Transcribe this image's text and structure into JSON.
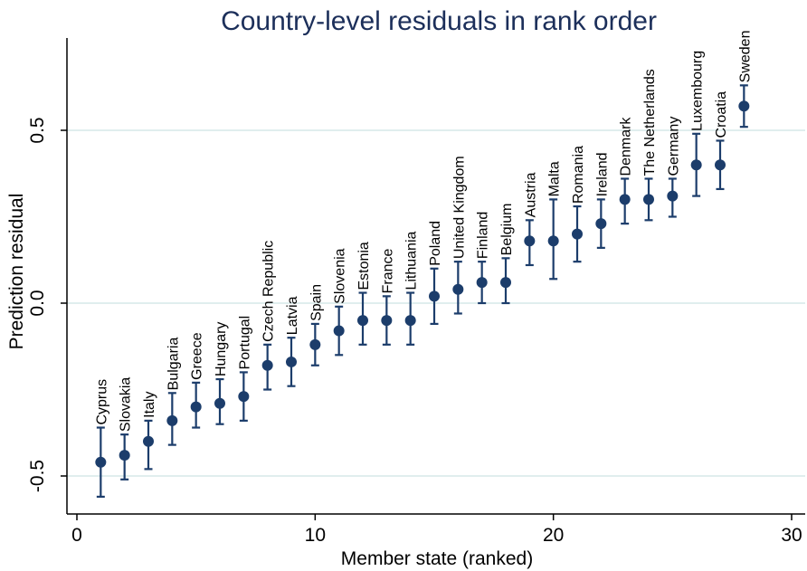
{
  "chart_data": {
    "type": "scatter",
    "title": "Country-level residuals in rank order",
    "xlabel": "Member state (ranked)",
    "ylabel": "Prediction residual",
    "xlim": [
      0,
      30
    ],
    "ylim": [
      -0.6,
      0.77
    ],
    "x_ticks": [
      0,
      10,
      20,
      30
    ],
    "x_tick_labels": [
      "0",
      "10",
      "20",
      "30"
    ],
    "y_ticks": [
      -0.5,
      0.0,
      0.5
    ],
    "y_tick_labels": [
      "-0.5",
      "0.0",
      "0.5"
    ],
    "grid": "horizontal",
    "legend": "none",
    "colors": {
      "marker": "#1c3d6b",
      "title": "#1c2f5a",
      "grid": "#d5e8e8"
    },
    "points": [
      {
        "x": 1,
        "label": "Cyprus",
        "y": -0.46,
        "lo": -0.56,
        "hi": -0.36
      },
      {
        "x": 2,
        "label": "Slovakia",
        "y": -0.44,
        "lo": -0.51,
        "hi": -0.38
      },
      {
        "x": 3,
        "label": "Italy",
        "y": -0.4,
        "lo": -0.48,
        "hi": -0.34
      },
      {
        "x": 4,
        "label": "Bulgaria",
        "y": -0.34,
        "lo": -0.41,
        "hi": -0.26
      },
      {
        "x": 5,
        "label": "Greece",
        "y": -0.3,
        "lo": -0.36,
        "hi": -0.23
      },
      {
        "x": 6,
        "label": "Hungary",
        "y": -0.29,
        "lo": -0.35,
        "hi": -0.22
      },
      {
        "x": 7,
        "label": "Portugal",
        "y": -0.27,
        "lo": -0.34,
        "hi": -0.2
      },
      {
        "x": 8,
        "label": "Czech Republic",
        "y": -0.18,
        "lo": -0.25,
        "hi": -0.12
      },
      {
        "x": 9,
        "label": "Latvia",
        "y": -0.17,
        "lo": -0.24,
        "hi": -0.1
      },
      {
        "x": 10,
        "label": "Spain",
        "y": -0.12,
        "lo": -0.18,
        "hi": -0.06
      },
      {
        "x": 11,
        "label": "Slovenia",
        "y": -0.08,
        "lo": -0.15,
        "hi": -0.01
      },
      {
        "x": 12,
        "label": "Estonia",
        "y": -0.05,
        "lo": -0.12,
        "hi": 0.03
      },
      {
        "x": 13,
        "label": "France",
        "y": -0.05,
        "lo": -0.12,
        "hi": 0.02
      },
      {
        "x": 14,
        "label": "Lithuania",
        "y": -0.05,
        "lo": -0.12,
        "hi": 0.03
      },
      {
        "x": 15,
        "label": "Poland",
        "y": 0.02,
        "lo": -0.06,
        "hi": 0.1
      },
      {
        "x": 16,
        "label": "United Kingdom",
        "y": 0.04,
        "lo": -0.03,
        "hi": 0.12
      },
      {
        "x": 17,
        "label": "Finland",
        "y": 0.06,
        "lo": 0.0,
        "hi": 0.12
      },
      {
        "x": 18,
        "label": "Belgium",
        "y": 0.06,
        "lo": 0.0,
        "hi": 0.13
      },
      {
        "x": 19,
        "label": "Austria",
        "y": 0.18,
        "lo": 0.11,
        "hi": 0.24
      },
      {
        "x": 20,
        "label": "Malta",
        "y": 0.18,
        "lo": 0.07,
        "hi": 0.3
      },
      {
        "x": 21,
        "label": "Romania",
        "y": 0.2,
        "lo": 0.12,
        "hi": 0.28
      },
      {
        "x": 22,
        "label": "Ireland",
        "y": 0.23,
        "lo": 0.16,
        "hi": 0.3
      },
      {
        "x": 23,
        "label": "Denmark",
        "y": 0.3,
        "lo": 0.23,
        "hi": 0.36
      },
      {
        "x": 24,
        "label": "The Netherlands",
        "y": 0.3,
        "lo": 0.24,
        "hi": 0.36
      },
      {
        "x": 25,
        "label": "Germany",
        "y": 0.31,
        "lo": 0.25,
        "hi": 0.36
      },
      {
        "x": 26,
        "label": "Luxembourg",
        "y": 0.4,
        "lo": 0.31,
        "hi": 0.49
      },
      {
        "x": 27,
        "label": "Croatia",
        "y": 0.4,
        "lo": 0.33,
        "hi": 0.47
      },
      {
        "x": 28,
        "label": "Sweden",
        "y": 0.57,
        "lo": 0.51,
        "hi": 0.63
      }
    ]
  }
}
